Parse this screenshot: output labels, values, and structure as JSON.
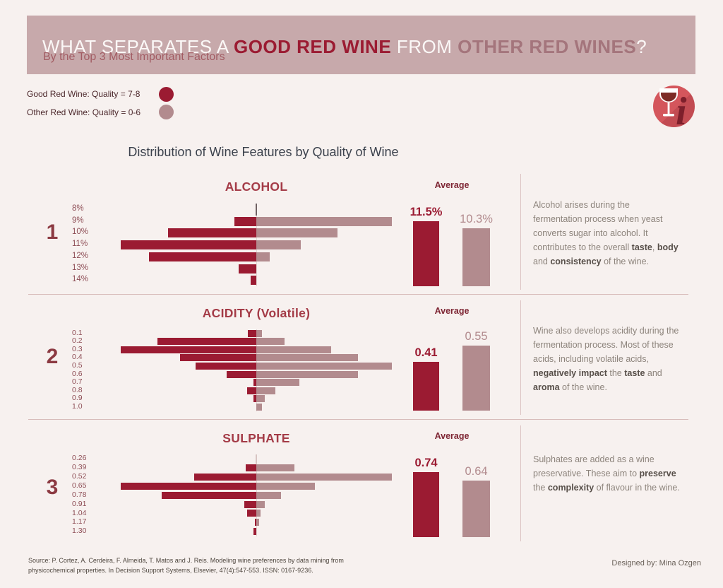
{
  "page": {
    "background": "#f7f1ef"
  },
  "header": {
    "banner_color": "#c7a9ab",
    "title_parts": [
      {
        "text": "WHAT SEPARATES A ",
        "style": "plain"
      },
      {
        "text": "GOOD RED WINE",
        "style": "good"
      },
      {
        "text": " FROM ",
        "style": "plain"
      },
      {
        "text": "OTHER RED WINES",
        "style": "other"
      },
      {
        "text": "?",
        "style": "plain"
      }
    ],
    "subtitle": "By the Top 3 Most Important Factors"
  },
  "legend": {
    "items": [
      {
        "label": "Good Red Wine: Quality = 7-8",
        "swatch_color": "#9b1b32"
      },
      {
        "label": "Other Red Wine: Quality = 0-6",
        "swatch_color": "#b28b8e"
      }
    ]
  },
  "icon": {
    "name": "wine-glass-info-badge",
    "circle_color": "#d4565c",
    "glass_color": "#ffffff",
    "wine_color": "#7d2b26",
    "info_color": "#7d1f2b",
    "info_glyph": "i"
  },
  "chart_title": "Distribution of Wine Features by Quality of Wine",
  "series_colors": {
    "good": "#9b1b32",
    "other": "#b28b8e"
  },
  "sections": [
    {
      "number": "1",
      "title": "ALCOHOL",
      "average_label": "Average",
      "good_average_display": "11.5%",
      "other_average_display": "10.3%",
      "description_parts": [
        {
          "text": "Alcohol arises during the fermentation process when yeast converts sugar into alcohol. It contributes to the overall ",
          "bold": false
        },
        {
          "text": "taste",
          "bold": true
        },
        {
          "text": ", ",
          "bold": false
        },
        {
          "text": "body",
          "bold": true
        },
        {
          "text": " and ",
          "bold": false
        },
        {
          "text": "consistency",
          "bold": true
        },
        {
          "text": " of the wine.",
          "bold": false
        }
      ]
    },
    {
      "number": "2",
      "title": "ACIDITY (Volatile)",
      "average_label": "Average",
      "good_average_display": "0.41",
      "other_average_display": "0.55",
      "description_parts": [
        {
          "text": "Wine also develops acidity during the fermentation process. Most of these acids, including volatile acids, ",
          "bold": false
        },
        {
          "text": "negatively impact",
          "bold": true
        },
        {
          "text": " the ",
          "bold": false
        },
        {
          "text": "taste",
          "bold": true
        },
        {
          "text": " and ",
          "bold": false
        },
        {
          "text": "aroma",
          "bold": true
        },
        {
          "text": " of the wine.",
          "bold": false
        }
      ]
    },
    {
      "number": "3",
      "title": "SULPHATE",
      "average_label": "Average",
      "good_average_display": "0.74",
      "other_average_display": "0.64",
      "description_parts": [
        {
          "text": "Sulphates are added as a wine preservative. These aim to ",
          "bold": false
        },
        {
          "text": "preserve",
          "bold": true
        },
        {
          "text": " the ",
          "bold": false
        },
        {
          "text": "complexity",
          "bold": true
        },
        {
          "text": " of flavour in the wine.",
          "bold": false
        }
      ]
    }
  ],
  "chart_data": [
    {
      "type": "bar",
      "subtype": "diverging-butterfly",
      "title": "ALCOHOL",
      "categories": [
        "8%",
        "9%",
        "10%",
        "11%",
        "12%",
        "13%",
        "14%"
      ],
      "series": [
        {
          "name": "Good Red Wine (Quality 7-8)",
          "side": "left",
          "values": [
            0,
            16,
            65,
            100,
            79,
            13,
            4
          ]
        },
        {
          "name": "Other Red Wine (Quality 0-6)",
          "side": "right",
          "values": [
            0,
            100,
            60,
            33,
            10,
            0,
            0
          ]
        }
      ],
      "value_units": "relative frequency, % of longest bar",
      "averages": {
        "good": 11.5,
        "other": 10.3,
        "unit": "%"
      }
    },
    {
      "type": "bar",
      "subtype": "diverging-butterfly",
      "title": "ACIDITY (Volatile)",
      "categories": [
        "0.1",
        "0.2",
        "0.3",
        "0.4",
        "0.5",
        "0.6",
        "0.7",
        "0.8",
        "0.9",
        "1.0"
      ],
      "series": [
        {
          "name": "Good Red Wine (Quality 7-8)",
          "side": "left",
          "values": [
            6,
            73,
            100,
            56,
            45,
            22,
            2,
            7,
            2,
            0
          ]
        },
        {
          "name": "Other Red Wine (Quality 0-6)",
          "side": "right",
          "values": [
            4,
            21,
            55,
            75,
            100,
            75,
            32,
            14,
            6,
            4
          ]
        }
      ],
      "value_units": "relative frequency, % of longest bar",
      "averages": {
        "good": 0.41,
        "other": 0.55
      }
    },
    {
      "type": "bar",
      "subtype": "diverging-butterfly",
      "title": "SULPHATE",
      "categories": [
        "0.26",
        "0.39",
        "0.52",
        "0.65",
        "0.78",
        "0.91",
        "1.04",
        "1.17",
        "1.30"
      ],
      "series": [
        {
          "name": "Good Red Wine (Quality 7-8)",
          "side": "left",
          "values": [
            0,
            8,
            46,
            100,
            70,
            9,
            7,
            1,
            2
          ]
        },
        {
          "name": "Other Red Wine (Quality 0-6)",
          "side": "right",
          "values": [
            0,
            28,
            100,
            43,
            18,
            6,
            3,
            2,
            0
          ]
        }
      ],
      "value_units": "relative frequency, % of longest bar",
      "averages": {
        "good": 0.74,
        "other": 0.64
      }
    }
  ],
  "footer": {
    "source_line1": "Source: P. Cortez, A. Cerdeira, F. Almeida, T. Matos and J. Reis. Modeling wine preferences by data mining from",
    "source_line2": "physicochemical properties. In Decision Support Systems, Elsevier, 47(4):547-553. ISSN: 0167-9236.",
    "designed_by": "Designed by: Mina Ozgen"
  }
}
